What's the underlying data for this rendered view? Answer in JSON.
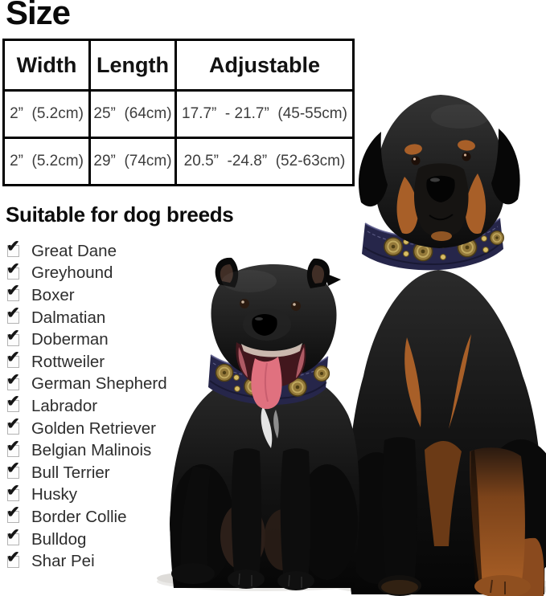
{
  "headings": {
    "size": "Size",
    "breeds": "Suitable for dog breeds"
  },
  "size_table": {
    "headers": [
      "Width",
      "Length",
      "Adjustable"
    ],
    "rows": [
      [
        "2”  (5.2cm)",
        "25”  (64cm)",
        "17.7”  - 21.7”  (45-55cm)"
      ],
      [
        "2”  (5.2cm)",
        "29”  (74cm)",
        "20.5”  -24.8”  (52-63cm)"
      ]
    ]
  },
  "breeds": {
    "checkbox_glyph": "✔",
    "items": [
      "Great Dane",
      "Greyhound",
      "Boxer",
      "Dalmatian",
      "Doberman",
      "Rottweiler",
      "German Shepherd",
      "Labrador",
      "Golden Retriever",
      "Belgian Malinois",
      "Bull Terrier",
      "Husky",
      "Border Collie",
      "Bulldog",
      "Shar Pei"
    ]
  },
  "photo": {
    "description": "Two black dogs, a Staffordshire Bull Terrier and a Rottweiler, sitting side by side wearing wide navy leather collars decorated with round brass conchos and studs",
    "colors": {
      "collar": "#26264a",
      "concho": "#94793a",
      "rottweiler_tan": "#a85f28",
      "tongue": "#e0717f"
    }
  }
}
